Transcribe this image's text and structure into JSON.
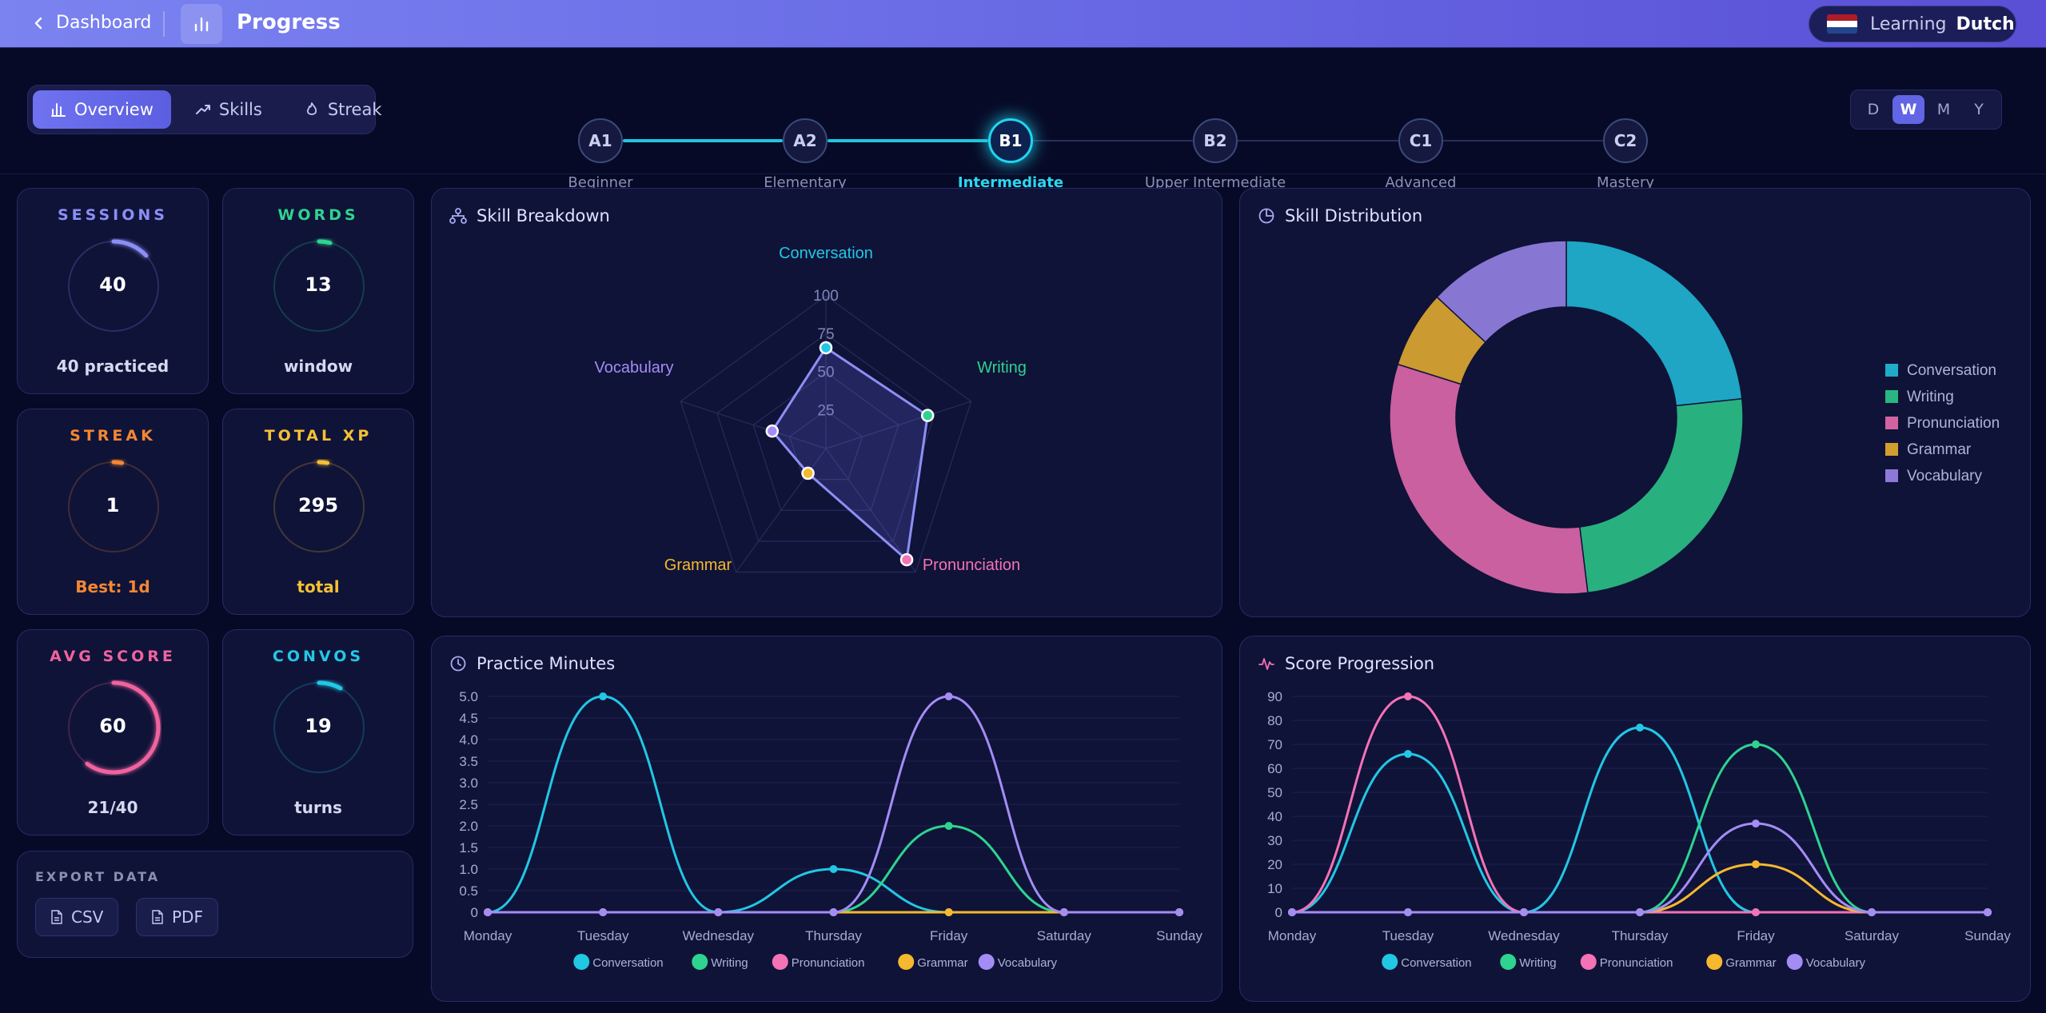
{
  "topbar": {
    "back_label": "Dashboard",
    "title": "Progress",
    "learning_label": "Learning",
    "learning_language": "Dutch",
    "flag": [
      "#ae1c28",
      "#ffffff",
      "#21468b"
    ]
  },
  "view_tabs": [
    {
      "label": "Overview",
      "icon": "bar-chart-icon",
      "active": true
    },
    {
      "label": "Skills",
      "icon": "trend-icon",
      "active": false
    },
    {
      "label": "Streak",
      "icon": "flame-icon",
      "active": false
    }
  ],
  "levels": [
    {
      "code": "A1",
      "name": "Beginner"
    },
    {
      "code": "A2",
      "name": "Elementary"
    },
    {
      "code": "B1",
      "name": "Intermediate"
    },
    {
      "code": "B2",
      "name": "Upper Intermediate"
    },
    {
      "code": "C1",
      "name": "Advanced"
    },
    {
      "code": "C2",
      "name": "Mastery"
    }
  ],
  "current_level_index": 2,
  "periods": [
    "D",
    "W",
    "M",
    "Y"
  ],
  "active_period": "W",
  "stats": [
    {
      "title": "SESSIONS",
      "value": "40",
      "sub": "40 practiced",
      "color": "#8b8ff5",
      "sub_color": "#d6d8f0",
      "progress": 0.13
    },
    {
      "title": "WORDS",
      "value": "13",
      "sub": "window",
      "color": "#2fd38f",
      "sub_color": "#d6d8f0",
      "progress": 0.04
    },
    {
      "title": "STREAK",
      "value": "1",
      "sub": "Best: 1d",
      "color": "#f58632",
      "sub_color": "#f58632",
      "progress": 0.03
    },
    {
      "title": "TOTAL XP",
      "value": "295",
      "sub": "total",
      "color": "#f5c033",
      "sub_color": "#f5c033",
      "progress": 0.03
    },
    {
      "title": "AVG SCORE",
      "value": "60",
      "sub": "21/40",
      "color": "#f0639f",
      "sub_color": "#d6d8f0",
      "progress": 0.6
    },
    {
      "title": "CONVOS",
      "value": "19",
      "sub": "turns",
      "color": "#24c8e6",
      "sub_color": "#d6d8f0",
      "progress": 0.08
    }
  ],
  "export": {
    "title": "EXPORT DATA",
    "csv_label": "CSV",
    "pdf_label": "PDF"
  },
  "skill_colors": {
    "Conversation": "#22c7e3",
    "Writing": "#2fd38f",
    "Pronunciation": "#f472b6",
    "Grammar": "#f5b82e",
    "Vocabulary": "#a48cf5"
  },
  "panels": {
    "radar_title": "Skill Breakdown",
    "donut_title": "Skill Distribution",
    "minutes_title": "Practice Minutes",
    "score_title": "Score Progression"
  },
  "chart_data": [
    {
      "type": "radar",
      "title": "Skill Breakdown",
      "axes": [
        "Conversation",
        "Writing",
        "Pronunciation",
        "Grammar",
        "Vocabulary"
      ],
      "values": [
        66,
        70,
        90,
        20,
        37
      ],
      "ticks": [
        25,
        50,
        75,
        100
      ],
      "range": [
        0,
        100
      ]
    },
    {
      "type": "pie",
      "title": "Skill Distribution",
      "labels": [
        "Conversation",
        "Writing",
        "Pronunciation",
        "Grammar",
        "Vocabulary"
      ],
      "values": [
        66,
        70,
        90,
        20,
        37
      ],
      "donut": true,
      "legend_position": "right"
    },
    {
      "type": "line",
      "title": "Practice Minutes",
      "categories": [
        "Monday",
        "Tuesday",
        "Wednesday",
        "Thursday",
        "Friday",
        "Saturday",
        "Sunday"
      ],
      "series": [
        {
          "name": "Conversation",
          "values": [
            0,
            5,
            0,
            1,
            0,
            0,
            0
          ]
        },
        {
          "name": "Writing",
          "values": [
            0,
            0,
            0,
            0,
            2,
            0,
            0
          ]
        },
        {
          "name": "Pronunciation",
          "values": [
            0,
            0,
            0,
            0,
            0,
            0,
            0
          ]
        },
        {
          "name": "Grammar",
          "values": [
            0,
            0,
            0,
            0,
            0,
            0,
            0
          ]
        },
        {
          "name": "Vocabulary",
          "values": [
            0,
            0,
            0,
            0,
            5,
            0,
            0
          ]
        }
      ],
      "yticks": [
        "0",
        "0.5",
        "1.0",
        "1.5",
        "2.0",
        "2.5",
        "3.0",
        "3.5",
        "4.0",
        "4.5",
        "5.0"
      ],
      "ylim": [
        0,
        5
      ],
      "grid": true,
      "legend_position": "bottom"
    },
    {
      "type": "line",
      "title": "Score Progression",
      "categories": [
        "Monday",
        "Tuesday",
        "Wednesday",
        "Thursday",
        "Friday",
        "Saturday",
        "Sunday"
      ],
      "series": [
        {
          "name": "Conversation",
          "values": [
            0,
            66,
            0,
            77,
            0,
            0,
            0
          ]
        },
        {
          "name": "Writing",
          "values": [
            0,
            0,
            0,
            0,
            70,
            0,
            0
          ]
        },
        {
          "name": "Pronunciation",
          "values": [
            0,
            90,
            0,
            0,
            0,
            0,
            0
          ]
        },
        {
          "name": "Grammar",
          "values": [
            0,
            0,
            0,
            0,
            20,
            0,
            0
          ]
        },
        {
          "name": "Vocabulary",
          "values": [
            0,
            0,
            0,
            0,
            37,
            0,
            0
          ]
        }
      ],
      "yticks": [
        "0",
        "10",
        "20",
        "30",
        "40",
        "50",
        "60",
        "70",
        "80",
        "90"
      ],
      "ylim": [
        0,
        90
      ],
      "grid": true,
      "legend_position": "bottom"
    }
  ]
}
